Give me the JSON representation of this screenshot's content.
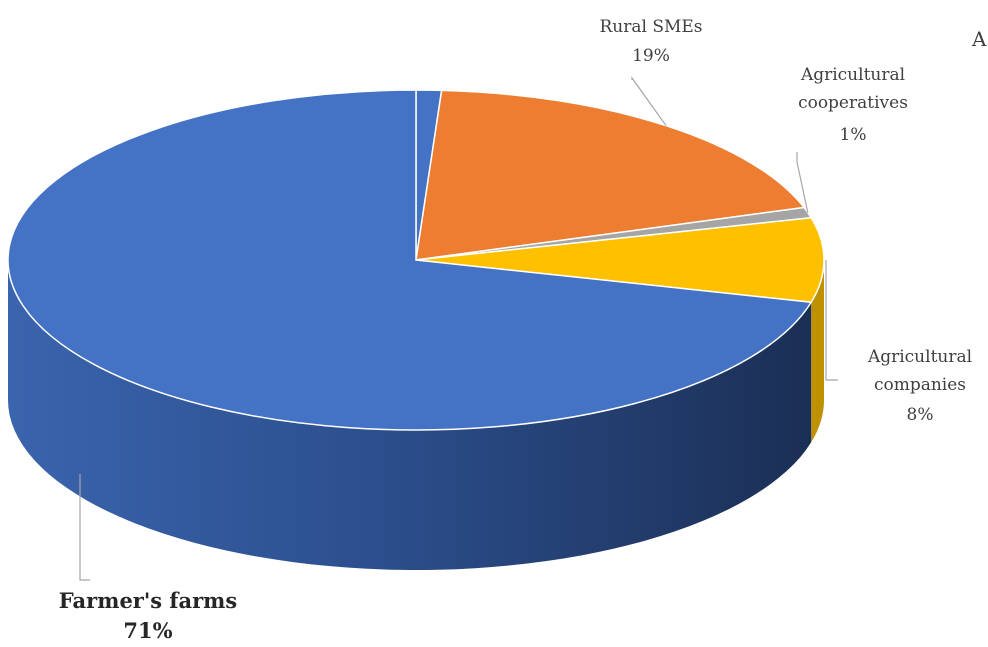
{
  "chart_data": {
    "type": "pie",
    "style": "3d",
    "slices": [
      {
        "key": "other",
        "name": "",
        "lines": [],
        "value": 1,
        "color": "#4472c4",
        "side": "#2f5597"
      },
      {
        "key": "rural",
        "name": "Rural SMEs",
        "lines": [
          "Rural SMEs",
          "19%"
        ],
        "value": 19,
        "color": "#ed7d31",
        "side": "#b85a1a"
      },
      {
        "key": "coop",
        "name": "Agricultural cooperatives",
        "lines": [
          "Agricultural",
          "cooperatives",
          "1%"
        ],
        "value": 1,
        "color": "#a5a5a5",
        "side": "#7b7b7b"
      },
      {
        "key": "companies",
        "name": "Agricultural companies",
        "lines": [
          "Agricultural",
          "companies",
          "8%"
        ],
        "value": 8,
        "color": "#ffc000",
        "side": "#bf9000"
      },
      {
        "key": "farms",
        "name": "Farmer's farms",
        "lines": [
          "Farmer's farms",
          "71%"
        ],
        "value": 71,
        "color": "#4472c4",
        "side": "#2f5597"
      }
    ],
    "cut_off_text": "A"
  }
}
